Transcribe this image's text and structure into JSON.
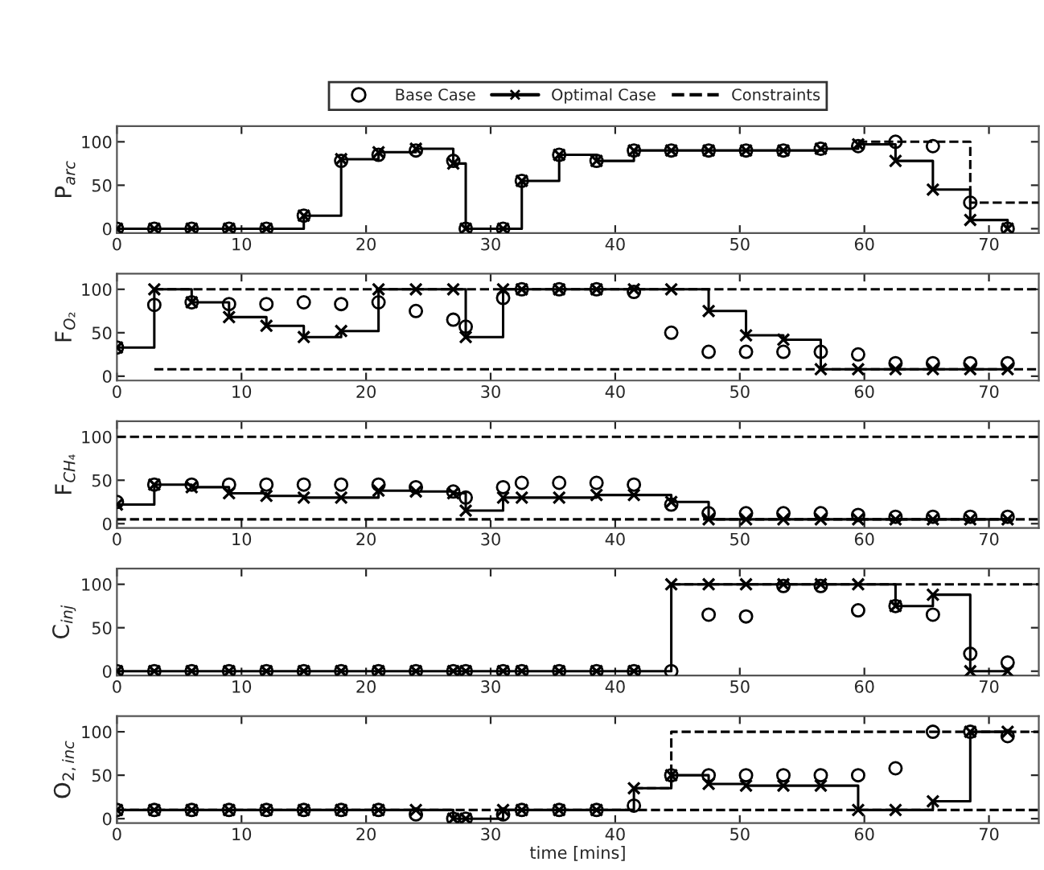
{
  "chart_data": [
    {
      "type": "step",
      "ylabel": "P$_{arc}$",
      "xlim": [
        0,
        74
      ],
      "ylim": [
        -5,
        118
      ],
      "xticks": [
        0,
        10,
        20,
        30,
        40,
        50,
        60,
        70
      ],
      "yticks": [
        0,
        50,
        100
      ],
      "legend": "top",
      "grid": false,
      "series": [
        {
          "name": "Base Case",
          "type": "scatter",
          "color": "#000000",
          "marker": "circle",
          "x": [
            0,
            3,
            6,
            9,
            12,
            15,
            18,
            21,
            24,
            27,
            28,
            31,
            32.5,
            35.5,
            38.5,
            41.5,
            44.5,
            47.5,
            50.5,
            53.5,
            56.5,
            59.5,
            62.5,
            65.5,
            68.5,
            71.5
          ],
          "values": [
            0,
            0,
            0,
            0,
            0,
            15,
            78,
            85,
            90,
            78,
            0,
            0,
            55,
            85,
            78,
            90,
            90,
            90,
            90,
            90,
            92,
            95,
            100,
            95,
            30,
            0
          ]
        },
        {
          "name": "Optimal Case",
          "color": "#000000",
          "marker": "cross",
          "line_style": "solid",
          "x": [
            0,
            3,
            6,
            9,
            12,
            15,
            18,
            21,
            24,
            27,
            28,
            31,
            32.5,
            35.5,
            38.5,
            41.5,
            44.5,
            47.5,
            50.5,
            53.5,
            56.5,
            59.5,
            62.5,
            65.5,
            68.5,
            71.5
          ],
          "values": [
            0,
            0,
            0,
            0,
            0,
            15,
            80,
            88,
            92,
            75,
            0,
            0,
            55,
            85,
            78,
            90,
            90,
            90,
            90,
            90,
            92,
            97,
            78,
            45,
            10,
            0
          ]
        },
        {
          "name": "Constraints",
          "color": "#000000",
          "marker": "none",
          "line_style": "dashed",
          "x": [
            59.5,
            68.5,
            74
          ],
          "values": [
            100,
            30,
            30
          ]
        }
      ]
    },
    {
      "type": "step",
      "ylabel": "F$_{O₂}$",
      "xlim": [
        0,
        74
      ],
      "ylim": [
        -5,
        118
      ],
      "xticks": [
        0,
        10,
        20,
        30,
        40,
        50,
        60,
        70
      ],
      "yticks": [
        0,
        50,
        100
      ],
      "legend": false,
      "grid": false,
      "series": [
        {
          "type": "scatter",
          "color": "#000000",
          "marker": "circle",
          "x": [
            0,
            3,
            6,
            9,
            12,
            15,
            18,
            21,
            24,
            27,
            28,
            31,
            32.5,
            35.5,
            38.5,
            41.5,
            44.5,
            47.5,
            50.5,
            53.5,
            56.5,
            59.5,
            62.5,
            65.5,
            68.5,
            71.5
          ],
          "values": [
            33,
            82,
            85,
            83,
            83,
            85,
            83,
            85,
            75,
            65,
            57,
            90,
            100,
            100,
            100,
            97,
            50,
            28,
            28,
            28,
            28,
            25,
            15,
            15,
            15,
            15
          ]
        },
        {
          "color": "#000000",
          "marker": "cross",
          "line_style": "solid",
          "x": [
            0,
            3,
            6,
            9,
            12,
            15,
            18,
            21,
            24,
            27,
            28,
            31,
            32.5,
            35.5,
            38.5,
            41.5,
            44.5,
            47.5,
            50.5,
            53.5,
            56.5,
            59.5,
            62.5,
            65.5,
            68.5,
            71.5
          ],
          "values": [
            33,
            100,
            85,
            68,
            58,
            45,
            52,
            100,
            100,
            100,
            45,
            100,
            100,
            100,
            100,
            100,
            100,
            75,
            47,
            42,
            8,
            8,
            8,
            8,
            8,
            8
          ]
        },
        {
          "color": "#000000",
          "marker": "none",
          "line_style": "dashed",
          "x": [
            3,
            74
          ],
          "values": [
            100,
            100
          ]
        },
        {
          "color": "#000000",
          "marker": "none",
          "line_style": "dashed",
          "x": [
            3,
            74
          ],
          "values": [
            8,
            8
          ]
        }
      ]
    },
    {
      "type": "step",
      "ylabel": "F$_{CH₄}$",
      "xlim": [
        0,
        74
      ],
      "ylim": [
        -5,
        118
      ],
      "xticks": [
        0,
        10,
        20,
        30,
        40,
        50,
        60,
        70
      ],
      "yticks": [
        0,
        50,
        100
      ],
      "legend": false,
      "grid": false,
      "series": [
        {
          "type": "scatter",
          "color": "#000000",
          "marker": "circle",
          "x": [
            0,
            3,
            6,
            9,
            12,
            15,
            18,
            21,
            24,
            27,
            28,
            31,
            32.5,
            35.5,
            38.5,
            41.5,
            44.5,
            47.5,
            50.5,
            53.5,
            56.5,
            59.5,
            62.5,
            65.5,
            68.5,
            71.5
          ],
          "values": [
            25,
            45,
            45,
            45,
            45,
            45,
            45,
            45,
            42,
            37,
            30,
            42,
            47,
            47,
            47,
            45,
            22,
            12,
            12,
            12,
            12,
            10,
            8,
            8,
            8,
            8
          ]
        },
        {
          "color": "#000000",
          "marker": "cross",
          "line_style": "solid",
          "x": [
            0,
            3,
            6,
            9,
            12,
            15,
            18,
            21,
            24,
            27,
            28,
            31,
            32.5,
            35.5,
            38.5,
            41.5,
            44.5,
            47.5,
            50.5,
            53.5,
            56.5,
            59.5,
            62.5,
            65.5,
            68.5,
            71.5
          ],
          "values": [
            22,
            45,
            42,
            35,
            32,
            30,
            30,
            38,
            37,
            35,
            15,
            30,
            30,
            30,
            33,
            33,
            25,
            5,
            5,
            5,
            5,
            5,
            5,
            5,
            5,
            5
          ]
        },
        {
          "color": "#000000",
          "marker": "none",
          "line_style": "dashed",
          "x": [
            0,
            74
          ],
          "values": [
            100,
            100
          ]
        },
        {
          "color": "#000000",
          "marker": "none",
          "line_style": "dashed",
          "x": [
            0,
            74
          ],
          "values": [
            5,
            5
          ]
        }
      ]
    },
    {
      "type": "step",
      "ylabel": "C$_{inj}$",
      "xlim": [
        0,
        74
      ],
      "ylim": [
        -5,
        118
      ],
      "xticks": [
        0,
        10,
        20,
        30,
        40,
        50,
        60,
        70
      ],
      "yticks": [
        0,
        50,
        100
      ],
      "legend": false,
      "grid": false,
      "series": [
        {
          "type": "scatter",
          "color": "#000000",
          "marker": "circle",
          "x": [
            0,
            3,
            6,
            9,
            12,
            15,
            18,
            21,
            24,
            27,
            28,
            31,
            32.5,
            35.5,
            38.5,
            41.5,
            44.5,
            47.5,
            50.5,
            53.5,
            56.5,
            59.5,
            62.5,
            65.5,
            68.5,
            71.5
          ],
          "values": [
            0,
            0,
            0,
            0,
            0,
            0,
            0,
            0,
            0,
            0,
            0,
            0,
            0,
            0,
            0,
            0,
            0,
            65,
            63,
            98,
            98,
            70,
            75,
            65,
            20,
            10
          ]
        },
        {
          "color": "#000000",
          "marker": "cross",
          "line_style": "solid",
          "x": [
            0,
            3,
            6,
            9,
            12,
            15,
            18,
            21,
            24,
            27,
            28,
            31,
            32.5,
            35.5,
            38.5,
            41.5,
            44.5,
            47.5,
            50.5,
            53.5,
            56.5,
            59.5,
            62.5,
            65.5,
            68.5,
            71.5
          ],
          "values": [
            0,
            0,
            0,
            0,
            0,
            0,
            0,
            0,
            0,
            0,
            0,
            0,
            0,
            0,
            0,
            0,
            100,
            100,
            100,
            100,
            100,
            100,
            75,
            88,
            0,
            0
          ]
        },
        {
          "color": "#000000",
          "marker": "none",
          "line_style": "dashed",
          "x": [
            44.5,
            74
          ],
          "values": [
            100,
            100
          ]
        }
      ]
    },
    {
      "type": "step",
      "ylabel": "O$_{2,inc}$",
      "xlabel": "time [mins]",
      "xlim": [
        0,
        74
      ],
      "ylim": [
        -5,
        118
      ],
      "xticks": [
        0,
        10,
        20,
        30,
        40,
        50,
        60,
        70
      ],
      "yticks": [
        0,
        50,
        100
      ],
      "legend": false,
      "grid": false,
      "series": [
        {
          "type": "scatter",
          "color": "#000000",
          "marker": "circle",
          "x": [
            0,
            3,
            6,
            9,
            12,
            15,
            18,
            21,
            24,
            27,
            28,
            31,
            32.5,
            35.5,
            38.5,
            41.5,
            44.5,
            47.5,
            50.5,
            53.5,
            56.5,
            59.5,
            62.5,
            65.5,
            68.5,
            71.5
          ],
          "values": [
            10,
            10,
            10,
            10,
            10,
            10,
            10,
            10,
            5,
            0,
            0,
            5,
            10,
            10,
            10,
            15,
            50,
            50,
            50,
            50,
            50,
            50,
            58,
            100,
            100,
            95
          ]
        },
        {
          "color": "#000000",
          "marker": "cross",
          "line_style": "solid",
          "x": [
            0,
            3,
            6,
            9,
            12,
            15,
            18,
            21,
            24,
            27,
            28,
            31,
            32.5,
            35.5,
            38.5,
            41.5,
            44.5,
            47.5,
            50.5,
            53.5,
            56.5,
            59.5,
            62.5,
            65.5,
            68.5,
            71.5
          ],
          "values": [
            10,
            10,
            10,
            10,
            10,
            10,
            10,
            10,
            10,
            0,
            0,
            10,
            10,
            10,
            10,
            35,
            50,
            40,
            38,
            38,
            38,
            10,
            10,
            20,
            100,
            100
          ]
        },
        {
          "color": "#000000",
          "marker": "none",
          "line_style": "dashed",
          "x": [
            41.5,
            44.5,
            74
          ],
          "values": [
            35,
            100,
            100
          ]
        },
        {
          "color": "#000000",
          "marker": "none",
          "line_style": "dashed",
          "x": [
            0,
            74
          ],
          "values": [
            10,
            10
          ]
        }
      ]
    }
  ]
}
